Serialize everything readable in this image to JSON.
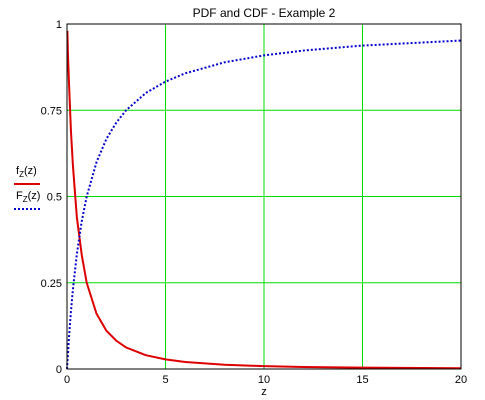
{
  "chart_data": {
    "type": "line",
    "title": "PDF and CDF - Example 2",
    "xlabel": "z",
    "ylabel": "",
    "xlim": [
      0,
      20
    ],
    "ylim": [
      0,
      1
    ],
    "x_ticks": [
      0,
      5,
      10,
      15,
      20
    ],
    "x_tick_labels": [
      "0",
      "5",
      "10",
      "15",
      "20"
    ],
    "y_ticks": [
      0,
      0.25,
      0.5,
      0.75,
      1
    ],
    "y_tick_labels": [
      "0",
      "0.25",
      "0.5",
      "0.75",
      "1"
    ],
    "grid": true,
    "grid_color": "#00dd00",
    "legend_position": "left",
    "series": [
      {
        "name": "f_Z(z)",
        "name_main": "f",
        "name_sub": "Z",
        "name_suffix": "(z)",
        "color": "#dd0000",
        "style": "solid",
        "x": [
          0.02,
          0.05,
          0.1,
          0.2,
          0.3,
          0.5,
          0.75,
          1,
          1.5,
          2,
          2.5,
          3,
          4,
          5,
          6,
          8,
          10,
          12,
          15,
          20
        ],
        "y": [
          0.98,
          0.91,
          0.83,
          0.69,
          0.59,
          0.44,
          0.33,
          0.25,
          0.16,
          0.111,
          0.082,
          0.0625,
          0.04,
          0.028,
          0.0204,
          0.0123,
          0.0083,
          0.0059,
          0.0039,
          0.0023
        ]
      },
      {
        "name": "F_Z(z)",
        "name_main": "F",
        "name_sub": "Z",
        "name_suffix": "(z)",
        "color": "#0000cc",
        "style": "dotted",
        "x": [
          0,
          0.1,
          0.2,
          0.3,
          0.5,
          0.75,
          1,
          1.5,
          2,
          2.5,
          3,
          4,
          5,
          6,
          8,
          10,
          12,
          15,
          20
        ],
        "y": [
          0,
          0.091,
          0.167,
          0.231,
          0.333,
          0.429,
          0.5,
          0.6,
          0.667,
          0.714,
          0.75,
          0.8,
          0.833,
          0.857,
          0.889,
          0.909,
          0.923,
          0.9375,
          0.952
        ]
      }
    ]
  }
}
